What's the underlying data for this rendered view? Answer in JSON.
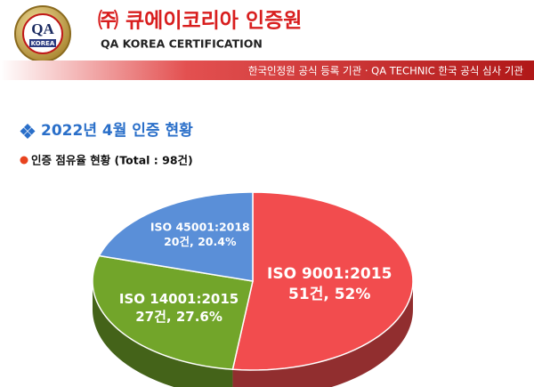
{
  "header": {
    "logo_main": "QA",
    "logo_sub": "KOREA",
    "company": "㈜ 큐에이코리아 인증원",
    "company_en": "QA KOREA CERTIFICATION",
    "banner": "한국인정원 공식 등록 기관 · QA TECHNIC 한국 공식 심사 기관"
  },
  "chart_data": {
    "type": "pie",
    "title": "2022년 4월 인증 현황",
    "subtitle": "인증 점유율 현황 (Total : 98건)",
    "categories": [
      "ISO 9001:2015",
      "ISO 14001:2015",
      "ISO 45001:2018"
    ],
    "values": [
      52,
      27.6,
      20.4
    ],
    "value_labels": [
      "51건, 52%",
      "27건, 27.6%",
      "20건, 20.4%"
    ],
    "colors": [
      "#f24c4e",
      "#72a52a",
      "#5a8fd8"
    ]
  }
}
